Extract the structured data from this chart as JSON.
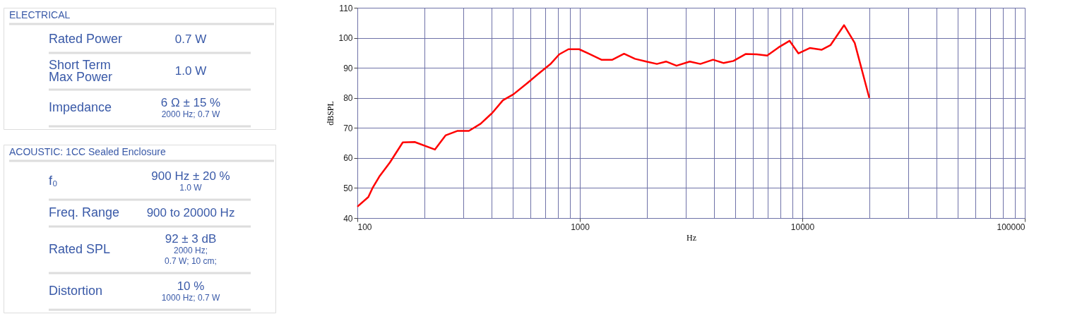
{
  "chart_data": [
    {
      "type": "other",
      "title": "ELECTRICAL",
      "categories": [
        "Rated Power",
        "Short Term\nMax Power",
        "Impedance"
      ],
      "annotations": [
        "0.7 W",
        "1.0 W",
        "6 Ω ± 15 %\n2000 Hz; 0.7 W"
      ]
    },
    {
      "type": "other",
      "title": "ACOUSTIC: 1CC Sealed Enclosure",
      "categories": [
        "f₀",
        "Freq. Range",
        "Rated SPL",
        "Distortion"
      ],
      "annotations": [
        "900 Hz ± 20 %\n1.0 W",
        "900 to 20000 Hz",
        "92 ± 3 dB\n2000 Hz;\n0.7 W; 10 cm;",
        "10 %\n1000 Hz; 0.7 W"
      ]
    },
    {
      "type": "line",
      "xlabel": "Hz",
      "ylabel": "dBSPL",
      "log": "x",
      "grid": true,
      "marker": "none",
      "line_style": "solid",
      "xlim": [
        100,
        100000
      ],
      "ylim": [
        40,
        110
      ],
      "xticks": [
        100,
        {
          "value": 200,
          "label": null
        },
        {
          "value": 300,
          "label": null
        },
        {
          "value": 400,
          "label": null
        },
        {
          "value": 500,
          "label": null
        },
        {
          "value": 600,
          "label": null
        },
        {
          "value": 700,
          "label": null
        },
        {
          "value": 800,
          "label": null
        },
        {
          "value": 900,
          "label": null
        },
        1000,
        {
          "value": 2000,
          "label": null
        },
        {
          "value": 3000,
          "label": null
        },
        {
          "value": 4000,
          "label": null
        },
        {
          "value": 5000,
          "label": null
        },
        {
          "value": 6000,
          "label": null
        },
        {
          "value": 7000,
          "label": null
        },
        {
          "value": 8000,
          "label": null
        },
        {
          "value": 9000,
          "label": null
        },
        10000,
        {
          "value": 20000,
          "label": null
        },
        {
          "value": 30000,
          "label": null
        },
        {
          "value": 40000,
          "label": null
        },
        {
          "value": 50000,
          "label": null
        },
        {
          "value": 60000,
          "label": null
        },
        {
          "value": 70000,
          "label": null
        },
        {
          "value": 80000,
          "label": null
        },
        {
          "value": 90000,
          "label": null
        },
        100000
      ],
      "yticks": [
        40,
        50,
        60,
        70,
        80,
        90,
        100,
        110
      ],
      "x": [
        100,
        112,
        117,
        126,
        140,
        160,
        181,
        223,
        249,
        281,
        317,
        358,
        404,
        451,
        503,
        582,
        656,
        741,
        808,
        889,
        992,
        1090,
        1250,
        1400,
        1580,
        1770,
        1990,
        2220,
        2440,
        2720,
        3120,
        3480,
        3970,
        4430,
        4900,
        5560,
        6240,
        6950,
        7820,
        8760,
        9610,
        10800,
        12200,
        13400,
        15400,
        17200,
        20000
      ],
      "series": [
        {
          "color": "#ff0000",
          "values": [
            43.8,
            47,
            50,
            54,
            58.5,
            65.2,
            65.3,
            62.8,
            67.5,
            69,
            69,
            71.4,
            75,
            79.2,
            81.2,
            85,
            88.2,
            91.4,
            94.5,
            96.2,
            96.2,
            94.8,
            92.7,
            92.7,
            94.7,
            93,
            92.1,
            91.3,
            92.1,
            90.7,
            92.1,
            91.3,
            92.7,
            91.6,
            92.3,
            94.6,
            94.5,
            94.1,
            96.8,
            99,
            94.8,
            96.6,
            96,
            97.6,
            104.2,
            98.3,
            80
          ]
        }
      ]
    }
  ]
}
